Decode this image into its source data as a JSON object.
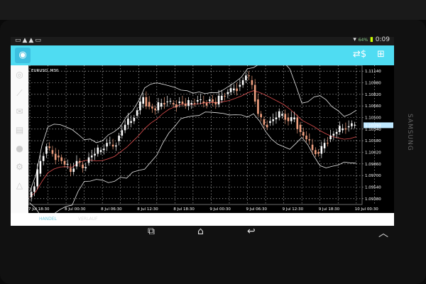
{
  "status_bar": {
    "battery": "64%",
    "time": "0:09"
  },
  "toolbar": {
    "logo_icon": "metatrader-icon",
    "actions": [
      "one-click-trading-icon",
      "new-order-icon"
    ]
  },
  "sidebar": {
    "items": [
      "quotes-icon",
      "chart-icon",
      "mail-icon",
      "news-icon",
      "chat-icon",
      "settings-icon",
      "community-icon"
    ]
  },
  "chart": {
    "symbol": "EURUSD, M30",
    "current_price": "1.10393",
    "price_labels": [
      "1.11140",
      "1.10980",
      "1.10820",
      "1.10660",
      "1.10500",
      "1.10340",
      "1.10180",
      "1.10020",
      "1.09860",
      "1.09700",
      "1.09540",
      "1.09380"
    ],
    "time_labels": [
      "7 Jul 18:30",
      "8 Jul 00:30",
      "8 Jul 06:30",
      "8 Jul 12:30",
      "8 Jul 18:30",
      "9 Jul 00:30",
      "9 Jul 06:30",
      "9 Jul 12:30",
      "9 Jul 18:30",
      "10 Jul 00:30"
    ],
    "colors": {
      "bull": "#ffffff",
      "bear": "#f0a080",
      "ma": "#e05050",
      "bands": "#e8e8e8",
      "grid": "#ffffff"
    }
  },
  "chart_data": {
    "type": "candlestick",
    "title": "EURUSD, M30",
    "ylim": [
      1.093,
      1.1122
    ],
    "closes": [
      1.094,
      1.0955,
      1.099,
      1.101,
      1.1,
      1.0995,
      1.0985,
      1.0975,
      1.099,
      1.098,
      1.0995,
      1.1,
      1.1005,
      1.1015,
      1.101,
      1.1025,
      1.104,
      1.1045,
      1.106,
      1.1078,
      1.1065,
      1.106,
      1.107,
      1.1072,
      1.1068,
      1.1072,
      1.1066,
      1.107,
      1.1074,
      1.107,
      1.1075,
      1.1068,
      1.108,
      1.1085,
      1.109,
      1.1095,
      1.1108,
      1.1095,
      1.1055,
      1.104,
      1.1045,
      1.105,
      1.1055,
      1.1045,
      1.105,
      1.103,
      1.102,
      1.1005,
      1.1,
      1.1015,
      1.1025,
      1.103,
      1.1035,
      1.1038,
      1.104
    ]
  },
  "bottom_tabs": [
    "HANDEL",
    "VERLAUF"
  ],
  "nav": [
    "recent-apps-icon",
    "home-icon",
    "back-icon",
    "up-icon"
  ],
  "brand": "SAMSUNG"
}
